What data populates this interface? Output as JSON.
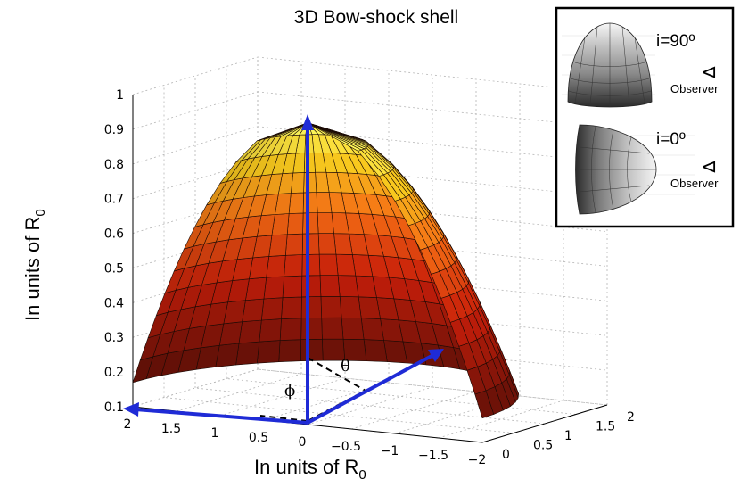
{
  "chart_data": {
    "type": "surface",
    "title": "3D Bow-shock shell",
    "xlabel_text": "In units of R",
    "xlabel_sub": "0",
    "ylabel_text": "In units of R",
    "ylabel_sub": "0",
    "z_ticks": [
      "0.1",
      "0.2",
      "0.3",
      "0.4",
      "0.5",
      "0.6",
      "0.7",
      "0.8",
      "0.9",
      "1"
    ],
    "z_range": [
      0.1,
      1
    ],
    "x_ticks": [
      "2",
      "1.5",
      "1",
      "0.5",
      "0",
      "−0.5",
      "−1",
      "−1.5",
      "−2"
    ],
    "x_range": [
      2,
      -2
    ],
    "y_ticks": [
      "0",
      "0.5",
      "1",
      "1.5",
      "2"
    ],
    "y_range": [
      0,
      2
    ],
    "grid": true,
    "colormap": "hot",
    "annotations": {
      "theta": "θ",
      "phi": "ϕ"
    },
    "inset": {
      "top": {
        "label": "i=90º",
        "observer": "Observer",
        "eye": "⊲"
      },
      "bottom": {
        "label": "i=0º",
        "observer": "Observer",
        "eye": "⊲"
      }
    },
    "colors": {
      "vector": "#1f2bd6",
      "frame": "#000000"
    }
  }
}
